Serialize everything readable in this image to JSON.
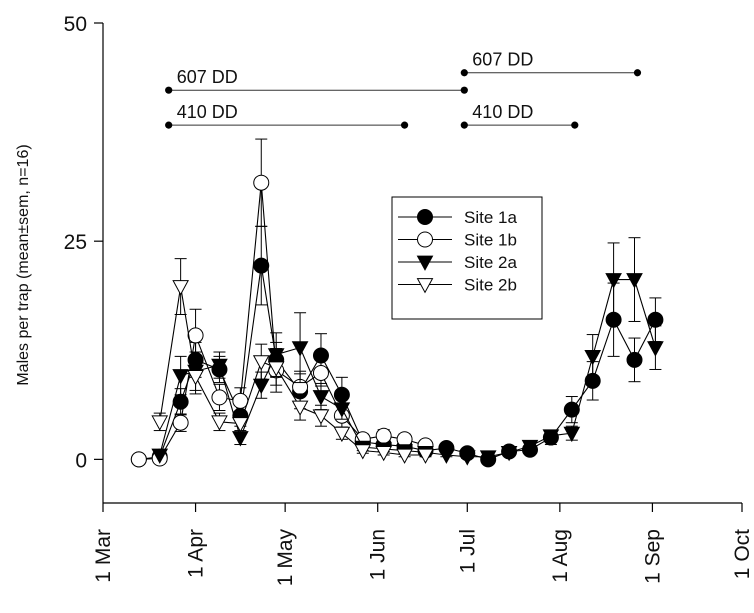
{
  "chart_data": {
    "type": "line",
    "title": "",
    "xlabel": "",
    "ylabel": "Males per trap (mean±sem, n=16)",
    "x_ticks": [
      "1 Mar",
      "1 Apr",
      "1 May",
      "1 Jun",
      "1 Jul",
      "1 Aug",
      "1 Sep",
      "1 Oct"
    ],
    "y_ticks": [
      "0",
      "25",
      "50"
    ],
    "xlim": [
      "1 Mar",
      "1 Oct"
    ],
    "ylim": [
      -5,
      50
    ],
    "legend_position": "center-right",
    "dd_annotations": [
      {
        "label": "607 DD",
        "from": "Mar 23",
        "to": "Jun 30",
        "y": 42.3
      },
      {
        "label": "410 DD",
        "from": "Mar 23",
        "to": "Jun 10",
        "y": 38.3
      },
      {
        "label": "607 DD",
        "from": "Jun 30",
        "to": "Aug 27",
        "y": 44.3
      },
      {
        "label": "410 DD",
        "from": "Jun 30",
        "to": "Aug 6",
        "y": 38.3
      }
    ],
    "series": [
      {
        "name": "Site 1a",
        "marker": "circle-filled",
        "x": [
          "Mar 13",
          "Mar 20",
          "Mar 27",
          "Apr 1",
          "Apr 9",
          "Apr 16",
          "Apr 23",
          "Apr 28",
          "May 6",
          "May 13",
          "May 20",
          "May 27",
          "Jun 3",
          "Jun 10",
          "Jun 17",
          "Jun 24",
          "Jul 1",
          "Jul 8",
          "Jul 15",
          "Jul 22",
          "Jul 29",
          "Aug 5",
          "Aug 12",
          "Aug 19",
          "Aug 26",
          "Sep 2",
          "Sep 9"
        ],
        "y": [
          0,
          0.3,
          6.6,
          11.4,
          10.3,
          5.0,
          22.2,
          11.4,
          7.8,
          11.9,
          7.4,
          2.0,
          1.7,
          1.5,
          1.0,
          1.3,
          0.7,
          0.0,
          0.9,
          1.1,
          2.5,
          5.7,
          9.0,
          16.0,
          11.4,
          16.0,
          null
        ],
        "err": [
          0,
          0,
          1.5,
          2.0,
          1.5,
          1.2,
          4.5,
          2.0,
          2.0,
          2.5,
          2.0,
          0.5,
          0.5,
          0.5,
          0.3,
          0.3,
          0.3,
          0.0,
          0.3,
          0.5,
          0.8,
          1.5,
          2.2,
          4.2,
          2.5,
          2.5,
          0
        ]
      },
      {
        "name": "Site 1b",
        "marker": "circle-open",
        "x": [
          "Mar 13",
          "Mar 20",
          "Mar 27",
          "Apr 1",
          "Apr 9",
          "Apr 16",
          "Apr 23",
          "Apr 28",
          "May 6",
          "May 13",
          "May 20",
          "May 27",
          "Jun 3",
          "Jun 10",
          "Jun 17",
          "Jun 24",
          "Jul 1",
          "Jul 8",
          "Jul 15",
          "Jul 22",
          "Jul 29",
          "Aug 5",
          "Aug 12",
          "Aug 19",
          "Aug 26",
          "Sep 2",
          "Sep 9"
        ],
        "y": [
          0,
          0.1,
          4.2,
          14.2,
          7.1,
          6.7,
          31.7,
          10.2,
          8.3,
          9.9,
          5.0,
          2.3,
          2.7,
          2.3,
          1.6,
          null,
          null,
          null,
          null,
          null,
          null,
          null,
          null,
          null,
          null,
          null,
          null
        ],
        "err": [
          0,
          0,
          1.0,
          3.0,
          1.5,
          1.5,
          5.0,
          2.5,
          1.8,
          1.5,
          1.3,
          0.6,
          0.7,
          0.6,
          0.4,
          0,
          0,
          0,
          0,
          0,
          0,
          0,
          0,
          0,
          0,
          0,
          0
        ]
      },
      {
        "name": "Site 2a",
        "marker": "triangle-down-filled",
        "x": [
          "Mar 13",
          "Mar 20",
          "Mar 27",
          "Apr 1",
          "Apr 9",
          "Apr 16",
          "Apr 23",
          "Apr 28",
          "May 6",
          "May 13",
          "May 20",
          "May 27",
          "Jun 3",
          "Jun 10",
          "Jun 17",
          "Jun 24",
          "Jul 1",
          "Jul 8",
          "Jul 15",
          "Jul 22",
          "Jul 29",
          "Aug 5",
          "Aug 12",
          "Aug 19",
          "Aug 26",
          "Sep 2",
          "Sep 9"
        ],
        "y": [
          null,
          0.5,
          9.6,
          10.1,
          10.8,
          2.5,
          8.5,
          12.0,
          12.8,
          7.2,
          5.8,
          1.4,
          1.2,
          1.0,
          0.8,
          0.5,
          0.3,
          0.3,
          0.8,
          1.5,
          2.7,
          3.0,
          11.8,
          20.6,
          20.6,
          12.8,
          null
        ],
        "err": [
          0,
          0,
          2.2,
          2.2,
          1.5,
          0.8,
          1.5,
          2.5,
          4.0,
          1.5,
          1.2,
          0.4,
          0.3,
          0.3,
          0.3,
          0.2,
          0.2,
          0.2,
          0.3,
          0.5,
          0.5,
          0.8,
          2.5,
          4.2,
          4.8,
          2.5,
          0
        ]
      },
      {
        "name": "Site 2b",
        "marker": "triangle-down-open",
        "x": [
          "Mar 13",
          "Mar 20",
          "Mar 27",
          "Apr 1",
          "Apr 9",
          "Apr 16",
          "Apr 23",
          "Apr 28",
          "May 6",
          "May 13",
          "May 20",
          "May 27",
          "Jun 3",
          "Jun 10",
          "Jun 17",
          "Jun 24",
          "Jul 1",
          "Jul 8",
          "Jul 15",
          "Jul 22",
          "Jul 29",
          "Aug 5",
          "Aug 12",
          "Aug 19",
          "Aug 26",
          "Sep 2",
          "Sep 9"
        ],
        "y": [
          null,
          4.3,
          19.8,
          9.5,
          4.3,
          4.1,
          11.2,
          10.5,
          6.0,
          5.0,
          3.0,
          1.0,
          0.8,
          0.5,
          0.5,
          null,
          null,
          null,
          null,
          null,
          null,
          null,
          null,
          null,
          null,
          null,
          null
        ],
        "err": [
          0,
          1.0,
          3.2,
          2.0,
          1.0,
          1.0,
          2.0,
          2.0,
          1.5,
          1.2,
          0.7,
          0.3,
          0.3,
          0.2,
          0.2,
          0,
          0,
          0,
          0,
          0,
          0,
          0,
          0,
          0,
          0,
          0,
          0
        ]
      }
    ]
  }
}
